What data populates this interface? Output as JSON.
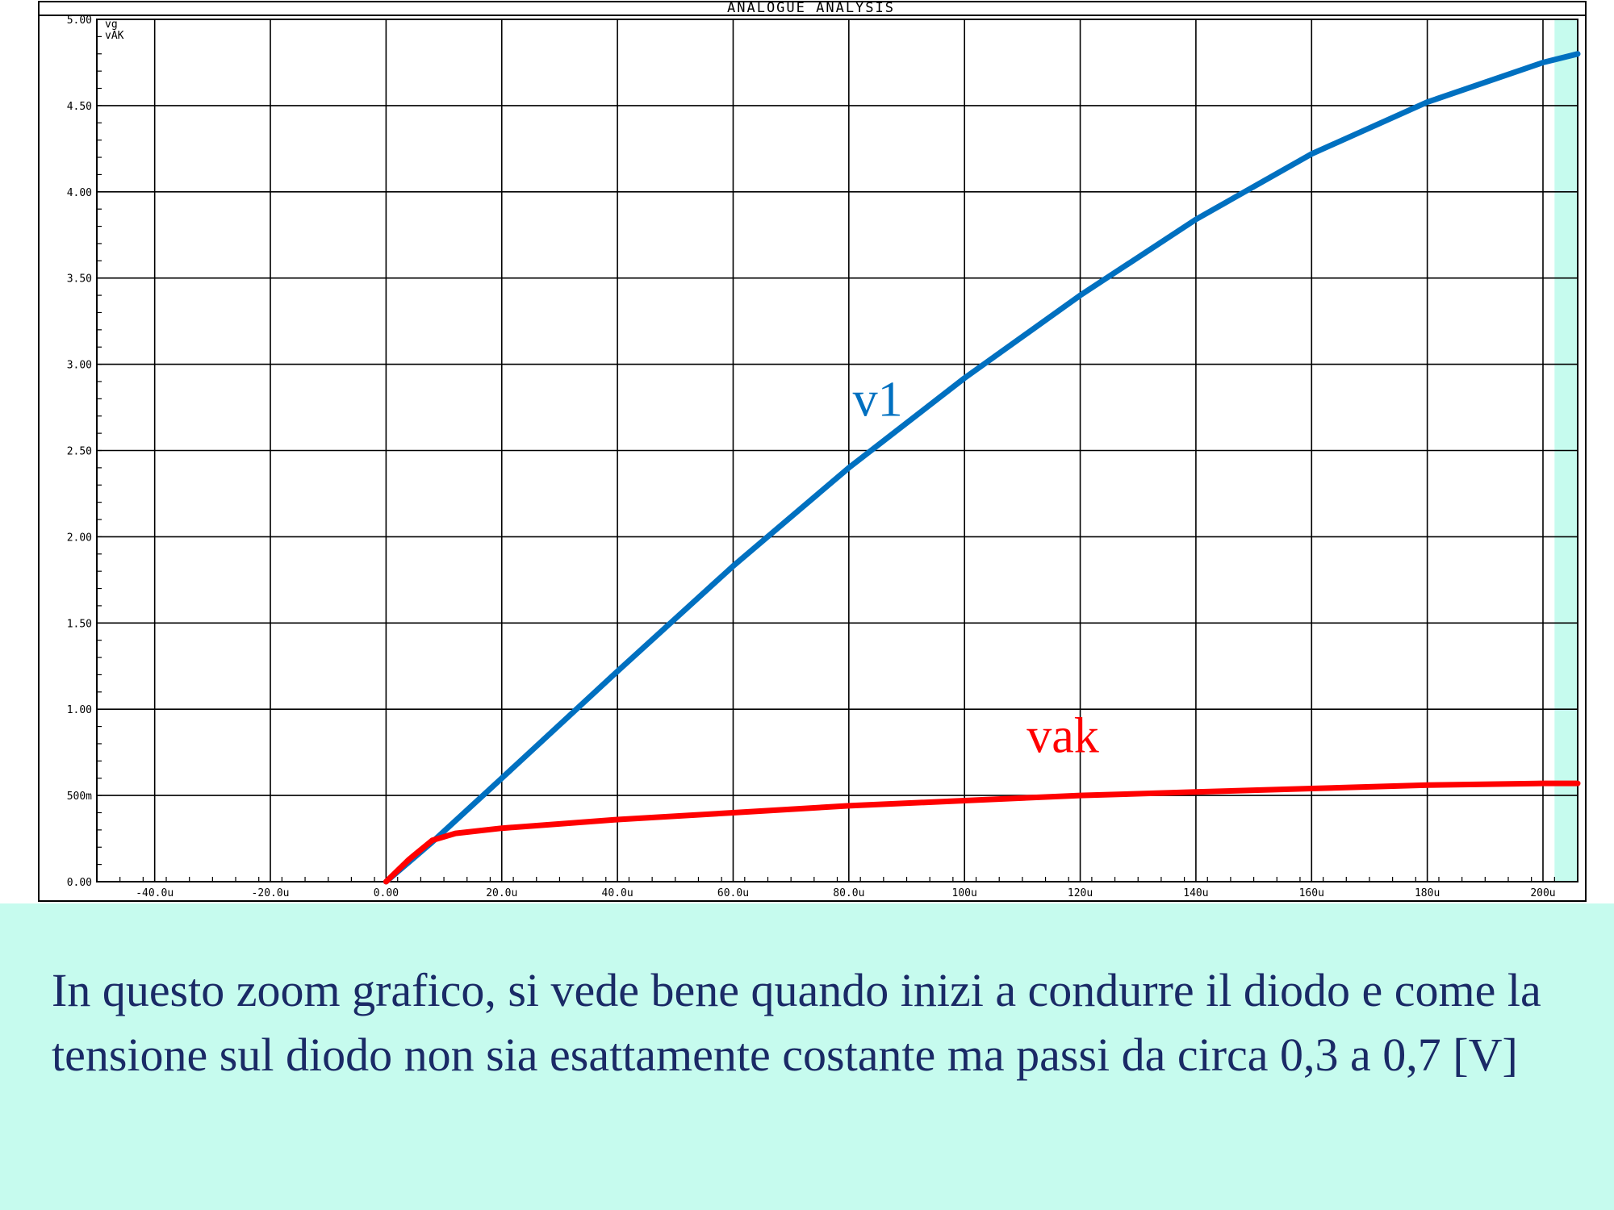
{
  "chart_data": {
    "type": "line",
    "title": "ANALOGUE ANALYSIS",
    "legend": [
      "vg",
      "vAK"
    ],
    "xlim": [
      -50,
      206
    ],
    "ylim": [
      0,
      5
    ],
    "x_tick_values": [
      -40,
      -20,
      0,
      20,
      40,
      60,
      80,
      100,
      120,
      140,
      160,
      180,
      200
    ],
    "x_tick_labels": [
      "-40.0u",
      "-20.0u",
      "0.00",
      "20.0u",
      "40.0u",
      "60.0u",
      "80.0u",
      "100u",
      "120u",
      "140u",
      "160u",
      "180u",
      "200u"
    ],
    "y_tick_values": [
      0,
      0.5,
      1.0,
      1.5,
      2.0,
      2.5,
      3.0,
      3.5,
      4.0,
      4.5,
      5.0
    ],
    "y_tick_labels": [
      "0.00",
      "500m",
      "1.00",
      "1.50",
      "2.00",
      "2.50",
      "3.00",
      "3.50",
      "4.00",
      "4.50",
      "5.00"
    ],
    "grid": true,
    "highlight_band": [
      202,
      206
    ],
    "series": [
      {
        "name": "v1",
        "color": "#0070c0",
        "x": [
          0,
          8,
          20,
          40,
          60,
          80,
          100,
          120,
          140,
          160,
          180,
          200,
          206
        ],
        "y": [
          0,
          0.23,
          0.6,
          1.22,
          1.83,
          2.4,
          2.92,
          3.4,
          3.84,
          4.22,
          4.52,
          4.75,
          4.8
        ]
      },
      {
        "name": "vak",
        "color": "#ff0000",
        "x": [
          0,
          4,
          8,
          12,
          20,
          40,
          60,
          80,
          100,
          120,
          140,
          160,
          180,
          200,
          206
        ],
        "y": [
          0,
          0.13,
          0.24,
          0.28,
          0.31,
          0.36,
          0.4,
          0.44,
          0.47,
          0.5,
          0.52,
          0.54,
          0.56,
          0.57,
          0.57
        ]
      }
    ],
    "annotations": [
      {
        "text": "v1",
        "x": 85,
        "y": 2.7,
        "color": "#0070c0"
      },
      {
        "text": "vak",
        "x": 117,
        "y": 0.75,
        "color": "#ff0000"
      }
    ]
  },
  "caption": "In questo zoom grafico, si vede bene quando inizi a condurre il diodo e come la tensione sul diodo non sia esattamente costante ma passi da circa 0,3 a 0,7 [V]"
}
